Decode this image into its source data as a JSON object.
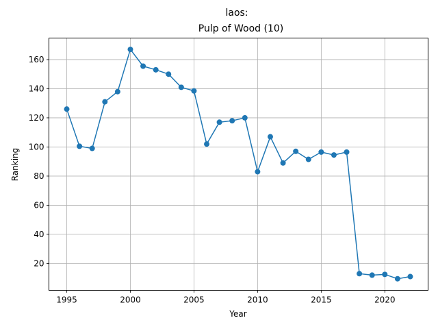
{
  "chart_data": {
    "type": "line",
    "title_line1": "laos:",
    "title_line2": "Pulp of Wood (10)",
    "xlabel": "Year",
    "ylabel": "Ranking",
    "xlim": [
      1993.6,
      1995.0,
      2023.4
    ],
    "ylim": [
      1.6,
      174.8
    ],
    "xticks": [
      1995,
      2000,
      2005,
      2010,
      2015,
      2020
    ],
    "yticks": [
      20,
      40,
      60,
      80,
      100,
      120,
      140,
      160
    ],
    "grid": true,
    "series": [
      {
        "color": "#1f77b4",
        "x": [
          1995,
          1996,
          1997,
          1998,
          1999,
          2000,
          2001,
          2002,
          2003,
          2004,
          2005,
          2006,
          2007,
          2008,
          2009,
          2010,
          2011,
          2012,
          2013,
          2014,
          2015,
          2016,
          2017,
          2018,
          2019,
          2020,
          2021,
          2022
        ],
        "y": [
          126,
          100.5,
          99,
          131,
          138,
          167,
          155.5,
          153,
          150,
          141,
          138.5,
          102,
          117,
          118,
          120,
          83,
          107,
          89,
          97,
          91.5,
          96.5,
          94.5,
          96.5,
          13,
          12,
          12.5,
          9.5,
          11
        ]
      }
    ]
  }
}
